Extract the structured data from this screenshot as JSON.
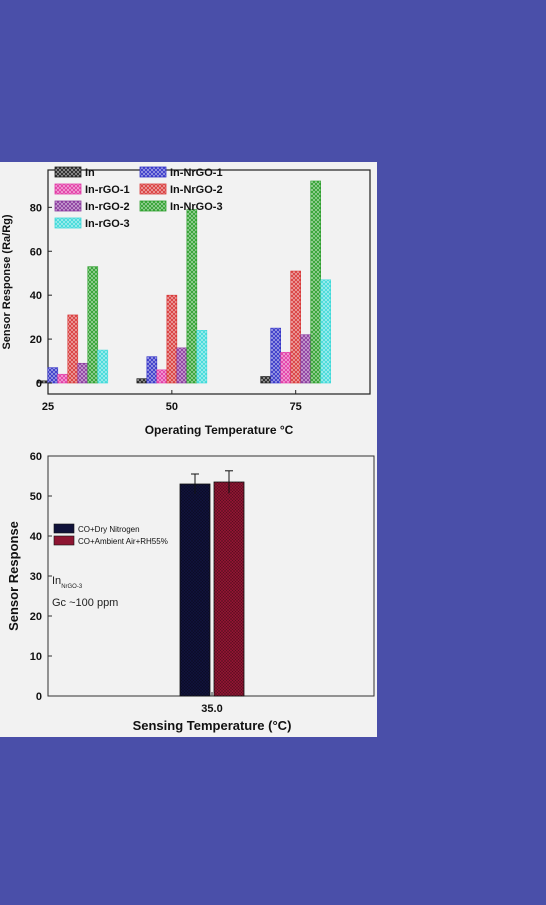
{
  "chart_data": [
    {
      "type": "bar",
      "xlabel": "Operating Temperature",
      "xlabel_unit": "°C",
      "ylabel": "Sensor Response (Ra/Rg)",
      "x_ticks": [
        "25",
        "50",
        "75"
      ],
      "y_ticks": [
        "0",
        "20",
        "40",
        "60",
        "80"
      ],
      "xlim": [
        25,
        90
      ],
      "ylim": [
        -5,
        97
      ],
      "categories": [
        30,
        50,
        75
      ],
      "legend_position": "top-left",
      "series": [
        {
          "name": "In",
          "color": "#222222",
          "values": [
            1,
            2,
            3
          ]
        },
        {
          "name": "In-NrGO-1",
          "color": "#3535c8",
          "values": [
            7,
            12,
            25
          ]
        },
        {
          "name": "In-rGO-1",
          "color": "#e23aa6",
          "values": [
            4,
            6,
            14
          ]
        },
        {
          "name": "In-NrGO-2",
          "color": "#d83a3a",
          "values": [
            31,
            40,
            51
          ]
        },
        {
          "name": "In-rGO-2",
          "color": "#8a3a9e",
          "values": [
            9,
            16,
            22
          ]
        },
        {
          "name": "In-NrGO-3",
          "color": "#2ea02e",
          "values": [
            53,
            79,
            92
          ]
        },
        {
          "name": "In-rGO-3",
          "color": "#3fd9d9",
          "values": [
            15,
            24,
            47
          ]
        }
      ]
    },
    {
      "type": "bar",
      "xlabel": "Sensing Temperature (°C)",
      "ylabel": "Sensor Response",
      "categories": [
        "35.0"
      ],
      "y_ticks": [
        "0",
        "10",
        "20",
        "30",
        "40",
        "50",
        "60"
      ],
      "ylim": [
        0,
        60
      ],
      "legend_position": "left",
      "series": [
        {
          "name": "CO+Dry Nitrogen",
          "color": "#10123a",
          "values": [
            53
          ],
          "error": 2.5
        },
        {
          "name": "CO+Ambient Air+RH55%",
          "color": "#8e1532",
          "values": [
            53.5
          ],
          "error": 2.8
        }
      ],
      "annotations": {
        "sample_main": "In",
        "sample_sub": "NrGO-3",
        "concentration": "Gc ~100 ppm"
      }
    }
  ]
}
